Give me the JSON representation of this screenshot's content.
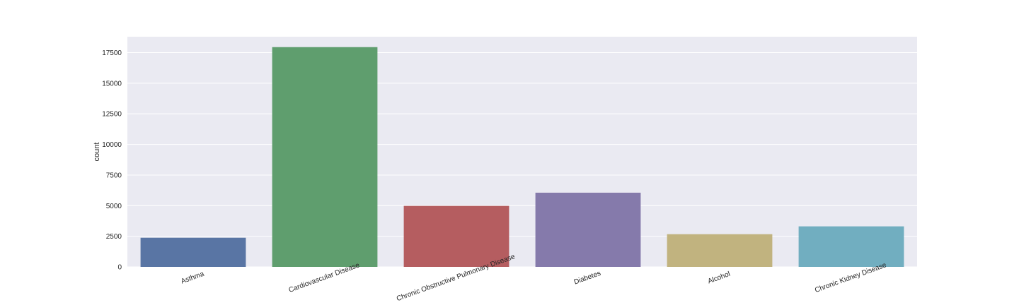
{
  "chart_data": {
    "type": "bar",
    "title": "",
    "xlabel": "",
    "ylabel": "count",
    "categories": [
      "Asthma",
      "Cardiovascular Disease",
      "Chronic Obstructive Pulmonary Disease",
      "Diabetes",
      "Alcohol",
      "Chronic Kidney Disease"
    ],
    "values": [
      2380,
      17950,
      4980,
      6060,
      2670,
      3310
    ],
    "colors": [
      "#5975a4",
      "#5f9e6e",
      "#b55d60",
      "#857aab",
      "#c1b37f",
      "#71aec0"
    ],
    "ylim": [
      0,
      18800
    ],
    "yticks": [
      0,
      2500,
      5000,
      7500,
      10000,
      12500,
      15000,
      17500
    ],
    "ytick_labels": [
      "0",
      "2500",
      "5000",
      "7500",
      "10000",
      "12500",
      "15000",
      "17500"
    ],
    "grid": true,
    "background": "#eaeaf2",
    "grid_color": "#ffffff",
    "x_label_rotation": -20
  }
}
